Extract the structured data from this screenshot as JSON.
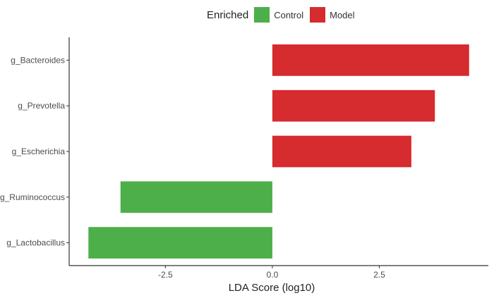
{
  "legend": {
    "title": "Enriched",
    "items": [
      {
        "label": "Control",
        "color": "#4daf4a"
      },
      {
        "label": "Model",
        "color": "#d62b2f"
      }
    ]
  },
  "chart_data": {
    "type": "bar",
    "orientation": "horizontal",
    "categories": [
      "g_Bacteroides",
      "g_Prevotella",
      "g_Escherichia",
      "g_Ruminococcus",
      "g_Lactobacillus"
    ],
    "values": [
      4.6,
      3.8,
      3.25,
      -3.55,
      -4.3
    ],
    "groups": [
      "Model",
      "Model",
      "Model",
      "Control",
      "Control"
    ],
    "xlabel": "LDA Score (log10)",
    "ylabel": "",
    "xlim": [
      -4.75,
      5.05
    ],
    "xticks": [
      -2.5,
      0.0,
      2.5
    ],
    "xtick_labels": [
      "-2.5",
      "0.0",
      "2.5"
    ],
    "grid": false,
    "legend_position": "top"
  }
}
